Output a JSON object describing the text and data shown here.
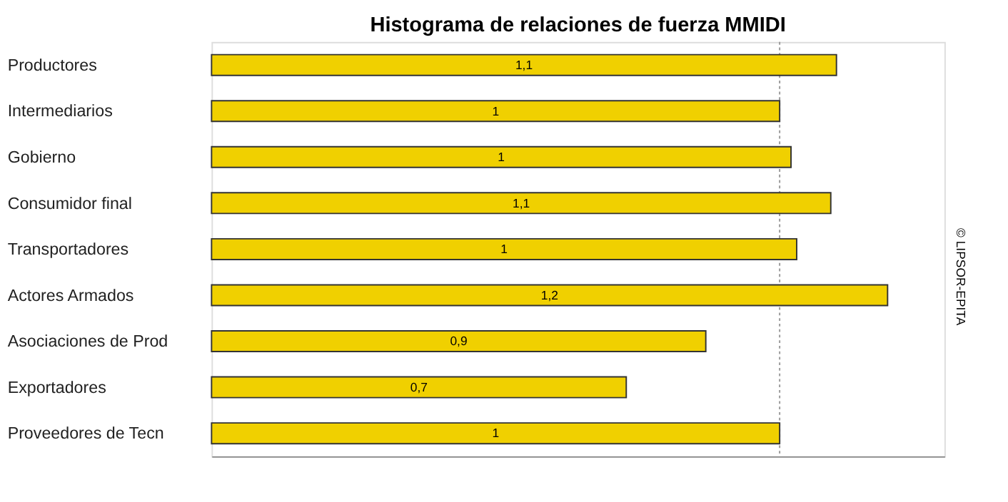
{
  "chart_data": {
    "type": "bar",
    "orientation": "horizontal",
    "title": "Histograma de relaciones de fuerza MMIDI",
    "categories": [
      "Productores",
      "Intermediarios",
      "Gobierno",
      "Consumidor final",
      "Transportadores",
      "Actores Armados",
      "Asociaciones  de Prod",
      "Exportadores",
      "Proveedores  de Tecn"
    ],
    "values": [
      1.1,
      1.0,
      1.02,
      1.09,
      1.03,
      1.19,
      0.87,
      0.73,
      1.0
    ],
    "value_labels": [
      "1,1",
      "1",
      "1",
      "1,1",
      "1",
      "1,2",
      "0,9",
      "0,7",
      "1"
    ],
    "color": "#f0d000",
    "xlim": [
      0,
      1.29
    ],
    "tick_labels": false,
    "grid": false,
    "ref_lines": [
      {
        "axis": "x",
        "value": 1,
        "line_style": "dotted",
        "color": "#999999"
      }
    ],
    "annotations": [
      "© LIPSOR-EPITA"
    ]
  }
}
